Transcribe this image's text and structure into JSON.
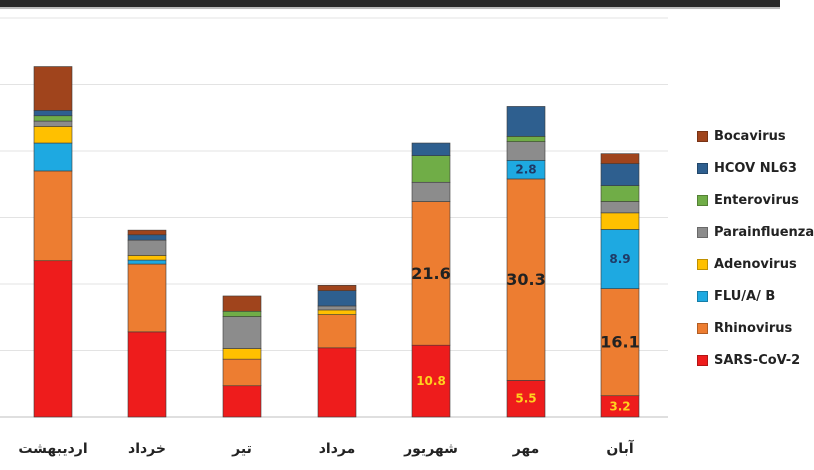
{
  "chart_data": {
    "type": "bar",
    "stacked": true,
    "categories": [
      "اردیبهشت",
      "خرداد",
      "تیر",
      "مرداد",
      "شهریور",
      "مهر",
      "آبان"
    ],
    "ylim": [
      0,
      60
    ],
    "grid": true,
    "legend_position": "right",
    "series": [
      {
        "name": "SARS-CoV-2",
        "color": "#ee1c1c",
        "values": [
          23.5,
          12.8,
          4.7,
          10.4,
          10.8,
          5.5,
          3.2
        ],
        "labels": [
          "",
          "",
          "",
          "",
          "10.8",
          "5.5",
          "3.2"
        ]
      },
      {
        "name": "Rhinovirus",
        "color": "#ed7d31",
        "values": [
          13.5,
          10.2,
          4.0,
          5.0,
          21.6,
          30.3,
          16.1
        ],
        "labels": [
          "",
          "",
          "",
          "",
          "21.6",
          "30.3",
          "16.1"
        ]
      },
      {
        "name": "FLU/A/ B",
        "color": "#1ea9e1",
        "values": [
          4.2,
          0.6,
          0,
          0,
          0,
          2.8,
          8.9
        ],
        "labels": [
          "",
          "",
          "",
          "",
          "",
          "2.8",
          "8.9"
        ]
      },
      {
        "name": "Adenovirus",
        "color": "#ffc000",
        "values": [
          2.5,
          0.7,
          1.6,
          0.7,
          0,
          0,
          2.5
        ],
        "labels": [
          "",
          "",
          "",
          "",
          "",
          "",
          ""
        ]
      },
      {
        "name": "Parainfluenza",
        "color": "#8c8c8c",
        "values": [
          0.8,
          2.3,
          4.8,
          0.6,
          2.9,
          2.8,
          1.7
        ],
        "labels": [
          "",
          "",
          "",
          "",
          "",
          "",
          ""
        ]
      },
      {
        "name": "Enterovirus",
        "color": "#70ad47",
        "values": [
          0.8,
          0,
          0.8,
          0,
          4.0,
          0.8,
          2.4
        ],
        "labels": [
          "",
          "",
          "",
          "",
          "",
          "",
          ""
        ]
      },
      {
        "name": "HCOV NL63",
        "color": "#2e5f8f",
        "values": [
          0.8,
          0.8,
          0,
          2.3,
          1.9,
          4.5,
          3.3
        ],
        "labels": [
          "",
          "",
          "",
          "",
          "",
          "",
          ""
        ]
      },
      {
        "name": "Bocavirus",
        "color": "#a0441c",
        "values": [
          6.6,
          0.7,
          2.3,
          0.8,
          0,
          0,
          1.5
        ],
        "labels": [
          "",
          "",
          "",
          "",
          "",
          "",
          ""
        ]
      }
    ]
  },
  "legend": {
    "items": [
      {
        "label": "Bocavirus",
        "color": "#a0441c"
      },
      {
        "label": "HCOV NL63",
        "color": "#2e5f8f"
      },
      {
        "label": "Enterovirus",
        "color": "#70ad47"
      },
      {
        "label": "Parainfluenza",
        "color": "#8c8c8c"
      },
      {
        "label": "Adenovirus",
        "color": "#ffc000"
      },
      {
        "label": "FLU/A/ B",
        "color": "#1ea9e1"
      },
      {
        "label": "Rhinovirus",
        "color": "#ed7d31"
      },
      {
        "label": "SARS-CoV-2",
        "color": "#ee1c1c"
      }
    ]
  }
}
